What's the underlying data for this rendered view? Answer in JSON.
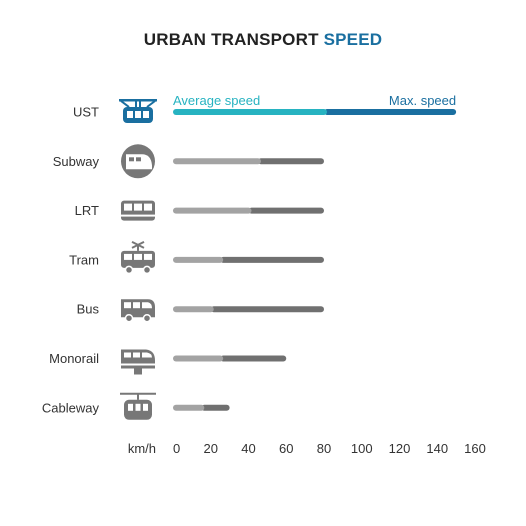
{
  "title": {
    "prefix": "URBAN TRANSPORT ",
    "highlight": "SPEED"
  },
  "colors": {
    "highlight_avg": "#27b3c1",
    "highlight_max": "#1a6fa0",
    "avg": "#a3a3a3",
    "max": "#707070",
    "icon": "#777777"
  },
  "chart_data": {
    "type": "bar",
    "title": "URBAN TRANSPORT SPEED",
    "orientation": "horizontal",
    "categories": [
      "UST",
      "Subway",
      "LRT",
      "Tram",
      "Bus",
      "Monorail",
      "Cableway"
    ],
    "icons": [
      "ust-icon",
      "subway-icon",
      "lrt-icon",
      "tram-icon",
      "bus-icon",
      "monorail-icon",
      "cableway-icon"
    ],
    "series": [
      {
        "name": "Average speed",
        "values": [
          80,
          45,
          40,
          25,
          20,
          25,
          15
        ]
      },
      {
        "name": "Max. speed",
        "values": [
          150,
          80,
          80,
          80,
          80,
          60,
          30
        ]
      }
    ],
    "highlight_category": "UST",
    "xlabel": "km/h",
    "xlim": [
      0,
      160
    ],
    "xticks": [
      0,
      20,
      40,
      60,
      80,
      100,
      120,
      140,
      160
    ],
    "grid": false,
    "legend": "inline above the UST bar"
  }
}
